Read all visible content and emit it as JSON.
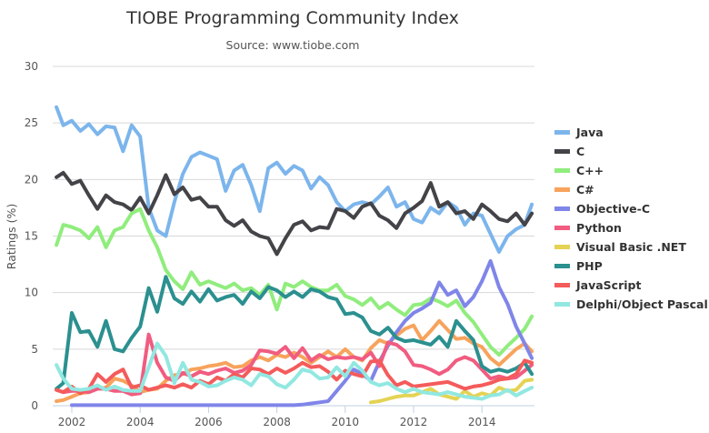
{
  "chart_data": {
    "type": "line",
    "title": "TIOBE Programming Community Index",
    "subtitle": "Source: www.tiobe.com",
    "xlabel": "",
    "ylabel": "Ratings (%)",
    "xlim": [
      2001.55,
      2015.46
    ],
    "ylim": [
      0,
      30
    ],
    "grid": true,
    "legend_position": "right",
    "x_ticks": [
      "2002",
      "2004",
      "2006",
      "2008",
      "2010",
      "2012",
      "2014"
    ],
    "y_ticks": [
      "0",
      "5",
      "10",
      "15",
      "20",
      "25",
      "30"
    ],
    "x": [
      2001.55,
      2001.75,
      2002.0,
      2002.25,
      2002.5,
      2002.75,
      2003.0,
      2003.25,
      2003.5,
      2003.75,
      2004.0,
      2004.25,
      2004.5,
      2004.75,
      2005.0,
      2005.25,
      2005.5,
      2005.75,
      2006.0,
      2006.25,
      2006.5,
      2006.75,
      2007.0,
      2007.25,
      2007.5,
      2007.75,
      2008.0,
      2008.25,
      2008.5,
      2008.75,
      2009.0,
      2009.25,
      2009.5,
      2009.75,
      2010.0,
      2010.25,
      2010.5,
      2010.75,
      2011.0,
      2011.25,
      2011.5,
      2011.75,
      2012.0,
      2012.25,
      2012.5,
      2012.75,
      2013.0,
      2013.25,
      2013.5,
      2013.75,
      2014.0,
      2014.25,
      2014.5,
      2014.75,
      2015.0,
      2015.25,
      2015.46
    ],
    "series": [
      {
        "name": "Java",
        "color": "#7cb5ec",
        "values": [
          26.4,
          24.8,
          25.2,
          24.3,
          24.9,
          24.0,
          24.7,
          24.6,
          22.5,
          24.8,
          23.8,
          17.5,
          15.5,
          15.0,
          18.0,
          20.5,
          22.0,
          22.4,
          22.1,
          21.8,
          19.0,
          20.8,
          21.3,
          19.5,
          17.2,
          21.0,
          21.5,
          20.5,
          21.2,
          20.8,
          19.2,
          20.2,
          19.5,
          18.0,
          17.2,
          17.8,
          18.0,
          17.8,
          18.5,
          19.3,
          17.6,
          18.0,
          16.5,
          16.2,
          17.5,
          17.0,
          18.0,
          17.5,
          16.0,
          17.0,
          16.8,
          15.2,
          13.6,
          15.0,
          15.6,
          16.0,
          17.8
        ]
      },
      {
        "name": "C",
        "color": "#434348",
        "values": [
          20.2,
          20.6,
          19.6,
          19.9,
          18.6,
          17.4,
          18.6,
          18.0,
          17.8,
          17.3,
          18.4,
          17.0,
          18.6,
          20.4,
          18.7,
          19.3,
          18.2,
          18.4,
          17.6,
          17.6,
          16.4,
          15.9,
          16.4,
          15.4,
          15.0,
          14.8,
          13.4,
          14.8,
          16.0,
          16.3,
          15.5,
          15.8,
          15.7,
          17.4,
          17.2,
          16.6,
          17.6,
          17.9,
          16.8,
          16.4,
          15.7,
          17.0,
          17.5,
          18.1,
          19.7,
          17.6,
          18.0,
          17.0,
          17.2,
          16.5,
          17.8,
          17.2,
          16.5,
          16.3,
          17.0,
          16.0,
          17.0
        ]
      },
      {
        "name": "C++",
        "color": "#90ed7d",
        "values": [
          14.2,
          16.0,
          15.8,
          15.5,
          14.8,
          15.8,
          14.0,
          15.5,
          15.8,
          17.0,
          17.4,
          15.5,
          14.0,
          12.0,
          11.0,
          10.3,
          11.8,
          10.7,
          11.0,
          10.7,
          10.4,
          10.8,
          10.2,
          10.4,
          9.8,
          10.7,
          8.5,
          10.8,
          10.5,
          11.0,
          10.5,
          10.2,
          10.2,
          10.7,
          9.7,
          9.4,
          8.9,
          9.5,
          8.6,
          9.1,
          8.5,
          8.0,
          8.9,
          9.0,
          9.5,
          9.2,
          8.8,
          9.3,
          8.2,
          7.4,
          6.3,
          5.2,
          4.5,
          5.3,
          6.0,
          6.8,
          7.9
        ]
      },
      {
        "name": "C#",
        "color": "#f7a35c",
        "values": [
          0.4,
          0.5,
          0.8,
          1.1,
          1.2,
          1.5,
          1.6,
          2.4,
          2.2,
          1.8,
          1.2,
          1.4,
          1.5,
          2.2,
          2.7,
          2.8,
          3.2,
          3.3,
          3.5,
          3.6,
          3.8,
          3.4,
          3.5,
          4.0,
          4.3,
          4.0,
          4.5,
          4.3,
          4.7,
          4.3,
          3.8,
          4.3,
          4.8,
          4.3,
          5.0,
          4.3,
          4.0,
          5.1,
          5.8,
          5.5,
          6.2,
          6.8,
          7.1,
          5.8,
          6.6,
          7.5,
          6.7,
          5.9,
          6.0,
          5.5,
          5.2,
          4.2,
          3.6,
          4.3,
          5.0,
          5.5,
          4.8
        ]
      },
      {
        "name": "Objective-C",
        "color": "#8085e9",
        "values": [
          null,
          null,
          0.05,
          0.05,
          0.05,
          0.05,
          0.05,
          0.05,
          0.05,
          0.05,
          0.05,
          0.05,
          0.05,
          0.05,
          0.05,
          0.05,
          0.05,
          0.05,
          0.05,
          0.05,
          0.05,
          0.05,
          0.05,
          0.05,
          0.05,
          0.05,
          0.05,
          0.05,
          0.05,
          0.1,
          0.2,
          0.3,
          0.4,
          1.3,
          2.2,
          3.2,
          2.8,
          2.2,
          3.9,
          5.3,
          6.5,
          7.5,
          8.2,
          8.6,
          9.1,
          10.9,
          9.8,
          10.2,
          8.8,
          9.6,
          11.0,
          12.8,
          10.5,
          9.0,
          7.0,
          5.5,
          4.2
        ]
      },
      {
        "name": "Python",
        "color": "#f15c80",
        "values": [
          1.4,
          1.2,
          1.3,
          1.3,
          1.2,
          1.5,
          1.5,
          1.3,
          1.3,
          1.0,
          1.1,
          6.3,
          3.8,
          2.5,
          2.2,
          2.9,
          2.6,
          3.0,
          2.8,
          3.1,
          3.3,
          2.9,
          3.1,
          3.6,
          4.9,
          4.8,
          4.6,
          5.2,
          4.2,
          5.1,
          4.0,
          4.5,
          4.1,
          4.3,
          4.2,
          4.3,
          4.1,
          4.7,
          3.5,
          5.6,
          5.4,
          4.8,
          3.6,
          3.5,
          3.2,
          2.8,
          3.2,
          4.0,
          4.3,
          4.0,
          3.2,
          2.4,
          2.6,
          2.4,
          2.5,
          3.1,
          3.6
        ]
      },
      {
        "name": "Visual Basic .NET",
        "color": "#e4d354",
        "values": [
          null,
          null,
          null,
          null,
          null,
          null,
          null,
          null,
          null,
          null,
          null,
          null,
          null,
          null,
          null,
          null,
          null,
          null,
          null,
          null,
          null,
          null,
          null,
          null,
          null,
          null,
          null,
          null,
          null,
          null,
          null,
          null,
          null,
          null,
          null,
          null,
          null,
          0.3,
          0.4,
          0.6,
          0.8,
          0.9,
          0.9,
          1.2,
          1.5,
          1.0,
          0.8,
          0.6,
          1.3,
          0.8,
          1.1,
          0.9,
          1.6,
          1.3,
          1.4,
          2.2,
          2.3
        ]
      },
      {
        "name": "PHP",
        "color": "#2b908f",
        "values": [
          1.5,
          2.0,
          8.2,
          6.5,
          6.6,
          5.2,
          7.5,
          5.0,
          4.8,
          6.0,
          7.0,
          10.4,
          8.3,
          11.4,
          9.5,
          9.0,
          10.1,
          9.2,
          10.3,
          9.3,
          9.6,
          9.8,
          9.0,
          10.1,
          9.5,
          10.5,
          10.2,
          9.6,
          10.1,
          9.6,
          10.3,
          10.1,
          9.6,
          9.4,
          8.1,
          8.2,
          7.8,
          6.6,
          6.3,
          6.9,
          6.0,
          5.7,
          5.8,
          5.6,
          5.4,
          6.1,
          5.2,
          7.5,
          6.6,
          5.8,
          3.5,
          3.0,
          3.2,
          3.0,
          3.3,
          3.8,
          2.8
        ]
      },
      {
        "name": "JavaScript",
        "color": "#f45b5b",
        "values": [
          1.4,
          1.2,
          1.7,
          1.1,
          1.5,
          2.8,
          2.1,
          2.8,
          3.2,
          1.6,
          1.8,
          1.4,
          1.6,
          1.8,
          1.6,
          1.9,
          1.6,
          2.2,
          1.9,
          2.5,
          2.2,
          2.8,
          2.5,
          3.3,
          3.2,
          2.8,
          3.3,
          2.9,
          3.3,
          3.8,
          3.4,
          3.5,
          3.0,
          2.3,
          3.1,
          2.8,
          2.6,
          3.9,
          4.0,
          2.7,
          1.8,
          2.1,
          1.7,
          1.8,
          1.9,
          2.0,
          2.1,
          1.8,
          1.5,
          1.7,
          1.8,
          2.0,
          2.3,
          2.4,
          2.8,
          4.0,
          3.8
        ]
      },
      {
        "name": "Delphi/Object Pascal",
        "color": "#91e8e1",
        "values": [
          3.6,
          2.4,
          1.5,
          1.4,
          1.5,
          1.8,
          1.4,
          1.7,
          1.4,
          1.3,
          1.3,
          3.4,
          5.5,
          4.4,
          2.0,
          3.8,
          2.3,
          2.1,
          1.7,
          1.8,
          2.2,
          2.5,
          2.3,
          1.8,
          2.8,
          2.6,
          1.9,
          1.6,
          2.3,
          3.2,
          3.0,
          2.4,
          2.5,
          3.4,
          2.6,
          3.8,
          3.1,
          2.1,
          1.8,
          2.0,
          1.5,
          1.2,
          1.5,
          1.2,
          1.1,
          1.0,
          1.2,
          1.0,
          0.8,
          0.7,
          0.6,
          0.9,
          1.0,
          1.4,
          0.9,
          1.3,
          1.6
        ]
      }
    ]
  }
}
